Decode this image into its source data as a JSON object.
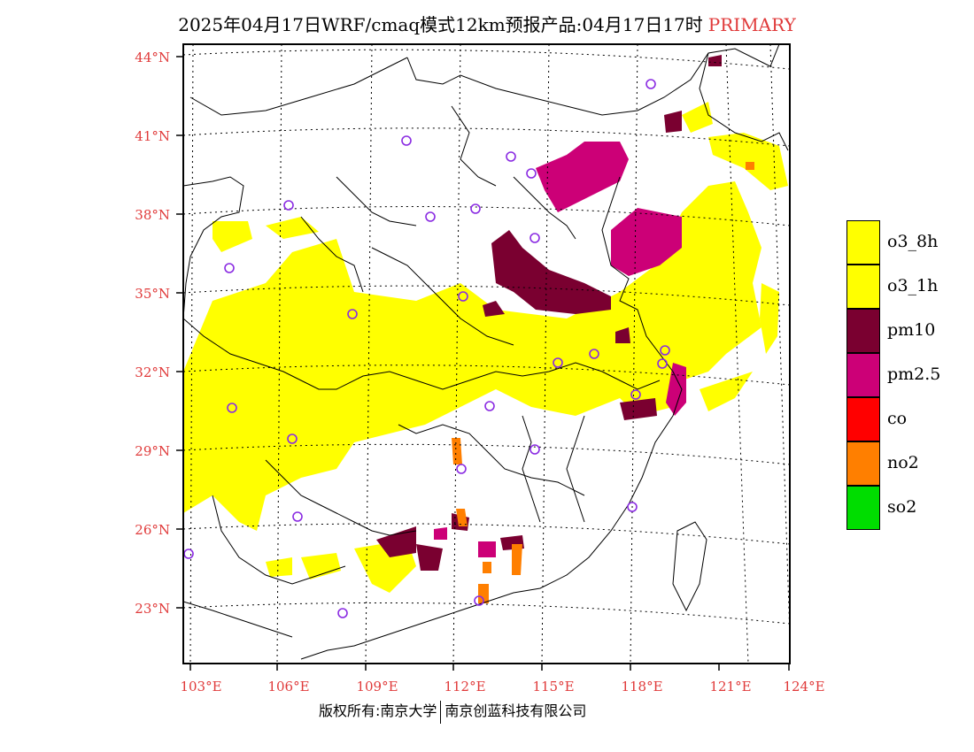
{
  "header": {
    "title": "2025年04月17日WRF/cmaq模式12km预报产品:04月17日17时",
    "tag": "PRIMARY"
  },
  "map": {
    "lat_labels": [
      "44°N",
      "41°N",
      "38°N",
      "35°N",
      "32°N",
      "29°N",
      "26°N",
      "23°N"
    ],
    "lon_labels": [
      "103°E",
      "106°E",
      "109°E",
      "112°E",
      "115°E",
      "118°E",
      "121°E",
      "124°E"
    ]
  },
  "legend": [
    {
      "label": "o3_8h",
      "color": "#ffff00"
    },
    {
      "label": "o3_1h",
      "color": "#ffff00"
    },
    {
      "label": "pm10",
      "color": "#7a0030"
    },
    {
      "label": "pm2.5",
      "color": "#cc0077"
    },
    {
      "label": "co",
      "color": "#ff0000"
    },
    {
      "label": "no2",
      "color": "#ff7f00"
    },
    {
      "label": "so2",
      "color": "#00dd00"
    }
  ],
  "footer": {
    "left": "版权所有:南京大学",
    "right": "南京创蓝科技有限公司"
  }
}
